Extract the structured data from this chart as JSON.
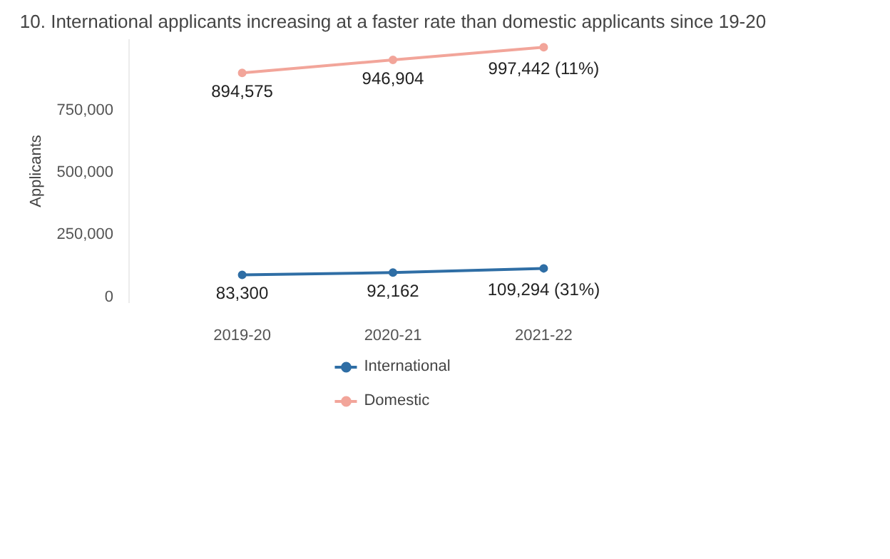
{
  "chart_data": {
    "type": "line",
    "title": "10. International applicants increasing at a faster rate than domestic applicants since 19-20",
    "ylabel": "Applicants",
    "categories": [
      "2019-20",
      "2020-21",
      "2021-22"
    ],
    "series": [
      {
        "name": "International",
        "color": "#2f6ea5",
        "values": [
          83300,
          92162,
          109294
        ],
        "value_labels": [
          "83,300",
          "92,162",
          "109,294 (31%)"
        ]
      },
      {
        "name": "Domestic",
        "color": "#f2a59a",
        "values": [
          894575,
          946904,
          997442
        ],
        "value_labels": [
          "894,575",
          "946,904",
          "997,442 (11%)"
        ]
      }
    ],
    "ylim": [
      -30000,
      1030000
    ],
    "yticks": [
      {
        "value": 0,
        "label": "0"
      },
      {
        "value": 250000,
        "label": "250,000"
      },
      {
        "value": 500000,
        "label": "500,000"
      },
      {
        "value": 750000,
        "label": "750,000"
      }
    ],
    "grid": false,
    "legend": "bottom",
    "marker": "circle",
    "line_style": "solid"
  }
}
